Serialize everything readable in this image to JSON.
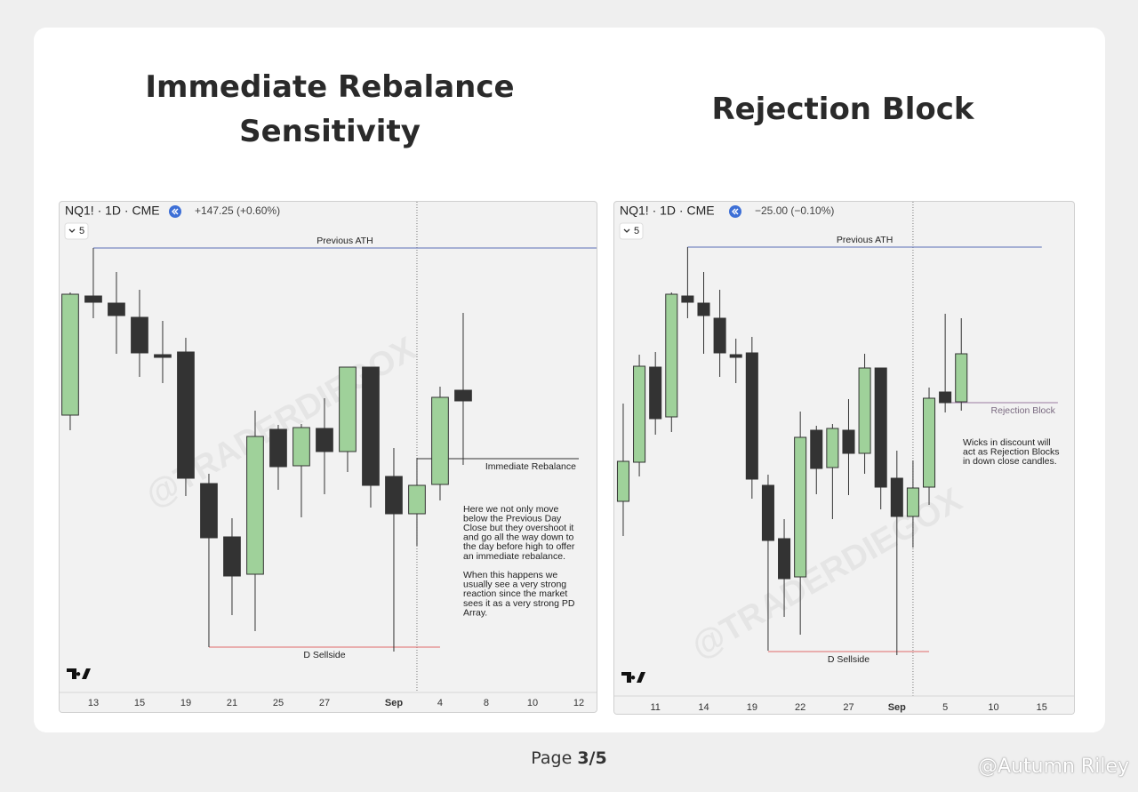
{
  "chart_data": [
    {
      "type": "candlestick",
      "title": [
        "Immediate Rebalance",
        "Sensitivity"
      ],
      "symbol": "NQ1! · 1D · CME",
      "change": "+147.25 (+0.60%)",
      "interval": "5",
      "watermark": "@TRADERDIEGOX",
      "up_color": "#9fd19a",
      "down_color": "#333333",
      "xlim": [
        -0.46,
        22.77
      ],
      "ylim": [
        0,
        528
      ],
      "xticks": [
        {
          "value": 1,
          "label": "13"
        },
        {
          "value": 3,
          "label": "15"
        },
        {
          "value": 5,
          "label": "19"
        },
        {
          "value": 7,
          "label": "21"
        },
        {
          "value": 9,
          "label": "25"
        },
        {
          "value": 11,
          "label": "27"
        },
        {
          "value": 14,
          "label": "Sep"
        },
        {
          "value": 16,
          "label": "4"
        },
        {
          "value": 18,
          "label": "8"
        },
        {
          "value": 20,
          "label": "10"
        },
        {
          "value": 22,
          "label": "12"
        }
      ],
      "divider": 15,
      "open": [
        312,
        446,
        438,
        422,
        380,
        383,
        235,
        175,
        133,
        296,
        255,
        297,
        271,
        366,
        243,
        201,
        234,
        340
      ],
      "high": [
        450,
        500,
        473,
        453,
        418,
        399,
        246,
        196,
        317,
        301,
        302,
        331,
        366,
        366,
        275,
        264,
        344,
        427
      ],
      "low": [
        295,
        421,
        381,
        355,
        348,
        221,
        51,
        87,
        69,
        228,
        197,
        223,
        248,
        208,
        46,
        165,
        216,
        256
      ],
      "close": [
        448,
        439,
        424,
        382,
        377,
        241,
        174,
        131,
        288,
        254,
        298,
        271,
        366,
        233,
        201,
        233,
        332,
        328
      ],
      "levels": [
        {
          "label": "Previous ATH",
          "value": 500,
          "start": 1,
          "color": "#5a6fb5"
        },
        {
          "label": "Immediate Rebalance",
          "value": 263,
          "start": 15,
          "end": 22,
          "color": "#333333"
        },
        {
          "label": "D Sellside",
          "value": 51,
          "start": 6,
          "end": 16,
          "color": "#e06a6a"
        }
      ],
      "annotation": [
        [
          "Here we not only move",
          "below the Previous Day",
          "Close but they overshoot it",
          "and go all the way down to",
          "the day before high to offer",
          "an immediate rebalance."
        ],
        [
          "When this happens we",
          "usually see a very strong",
          "reaction since the market",
          "sees it as a very strong PD",
          "Array."
        ]
      ]
    },
    {
      "type": "candlestick",
      "title": [
        "Rejection Block"
      ],
      "symbol": "NQ1! · 1D · CME",
      "change": "−25.00 (−0.10%)",
      "interval": "5",
      "watermark": "@TRADERDIEGOX",
      "up_color": "#9fd19a",
      "down_color": "#333333",
      "xlim": [
        -0.55,
        28.0
      ],
      "ylim": [
        0,
        532
      ],
      "xticks": [
        {
          "value": 2,
          "label": "11"
        },
        {
          "value": 5,
          "label": "14"
        },
        {
          "value": 8,
          "label": "19"
        },
        {
          "value": 11,
          "label": "22"
        },
        {
          "value": 14,
          "label": "27"
        },
        {
          "value": 17,
          "label": "Sep"
        },
        {
          "value": 20,
          "label": "5"
        },
        {
          "value": 23,
          "label": "10"
        },
        {
          "value": 26,
          "label": "15"
        }
      ],
      "divider": 18,
      "open": [
        219,
        263,
        370,
        314,
        450,
        442,
        425,
        384,
        386,
        237,
        177,
        134,
        299,
        257,
        299,
        273,
        369,
        245,
        202,
        235,
        342,
        331
      ],
      "high": [
        329,
        384,
        387,
        454,
        505,
        477,
        457,
        402,
        404,
        249,
        199,
        320,
        304,
        306,
        334,
        385,
        369,
        276,
        265,
        347,
        430,
        425
      ],
      "low": [
        180,
        247,
        294,
        297,
        425,
        385,
        359,
        352,
        222,
        51,
        89,
        69,
        227,
        199,
        226,
        250,
        210,
        46,
        167,
        215,
        319,
        321
      ],
      "close": [
        264,
        371,
        312,
        452,
        443,
        428,
        386,
        381,
        244,
        175,
        132,
        291,
        256,
        301,
        273,
        369,
        235,
        202,
        234,
        335,
        330,
        385
      ],
      "levels": [
        {
          "label": "Previous ATH",
          "value": 505,
          "start": 4,
          "end": 26,
          "color": "#5a6fb5"
        },
        {
          "label": "Rejection Block",
          "value": 330,
          "start": 20,
          "end": 27,
          "color": "#9a7aa0"
        },
        {
          "label": "D Sellside",
          "value": 50,
          "start": 9,
          "end": 19,
          "color": "#e06a6a"
        }
      ],
      "annotation": [
        [
          "Wicks in discount will",
          "act as Rejection Blocks",
          "in down close candles."
        ]
      ]
    }
  ],
  "footer": {
    "page_label": "Page",
    "page_number": "3/5",
    "credit": "@Autumn Riley"
  }
}
